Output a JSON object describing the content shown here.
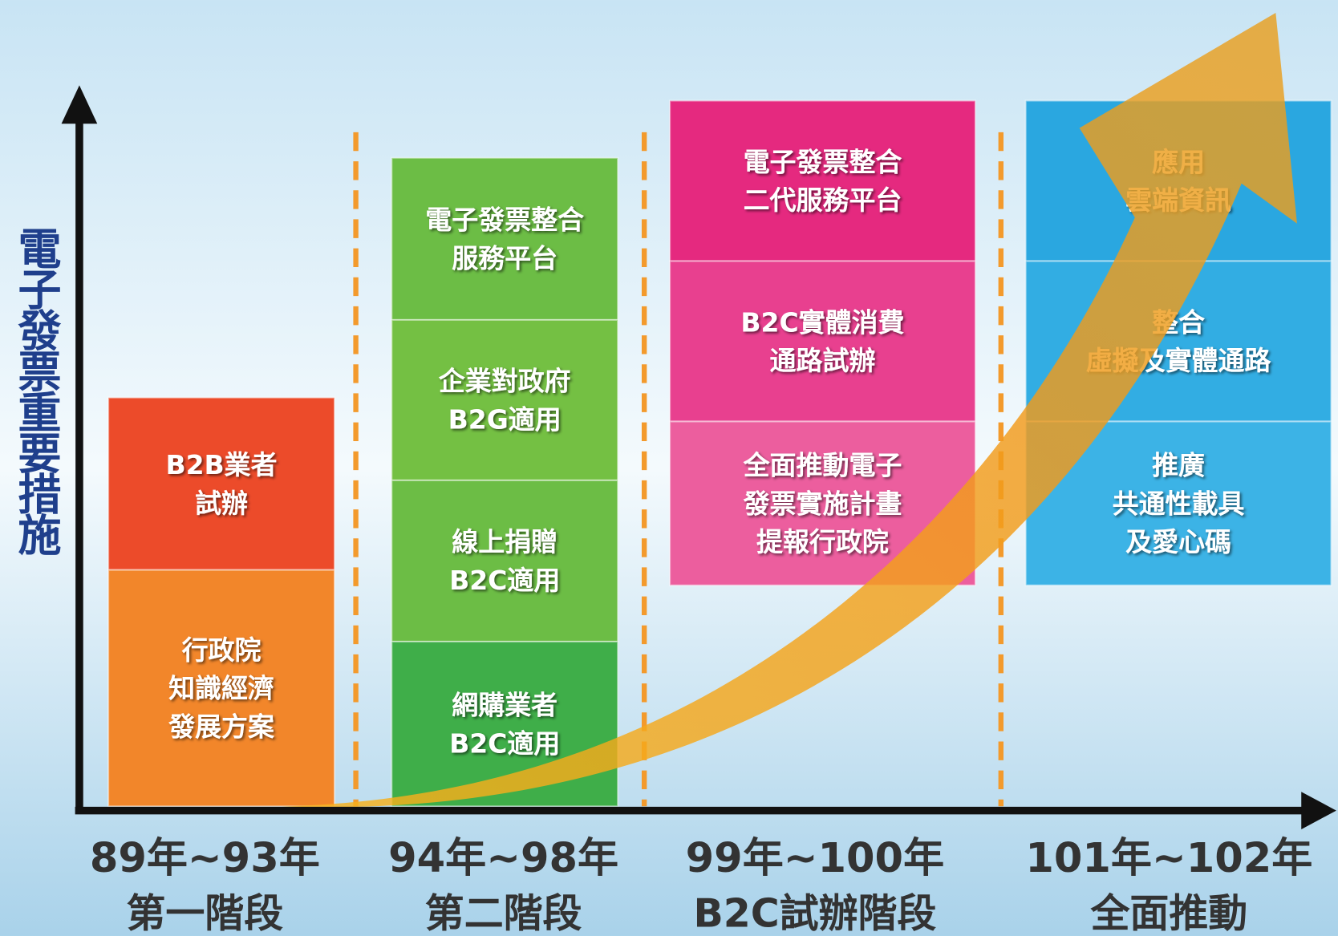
{
  "y_axis_label": "電子發票重要措施",
  "stages": [
    {
      "period": "89年~93年",
      "name": "第一階段",
      "items": [
        [
          "B2B業者",
          "試辦"
        ],
        [
          "行政院",
          "知識經濟",
          "發展方案"
        ]
      ]
    },
    {
      "period": "94年~98年",
      "name": "第二階段",
      "items": [
        [
          "電子發票整合",
          "服務平台"
        ],
        [
          "企業對政府",
          "B2G適用"
        ],
        [
          "線上捐贈",
          "B2C適用"
        ],
        [
          "網購業者",
          "B2C適用"
        ]
      ]
    },
    {
      "period": "99年~100年",
      "name": "B2C試辦階段",
      "items": [
        [
          "電子發票整合",
          "二代服務平台"
        ],
        [
          "B2C實體消費",
          "通路試辦"
        ],
        [
          "全面推動電子",
          "發票實施計畫",
          "提報行政院"
        ]
      ]
    },
    {
      "period": "101年~102年",
      "name": "全面推動",
      "items": [
        [
          "應用",
          "雲端資訊"
        ],
        [
          "整合",
          "虛擬及實體通路"
        ],
        [
          "推廣",
          "共通性載具",
          "及愛心碼"
        ]
      ]
    }
  ]
}
